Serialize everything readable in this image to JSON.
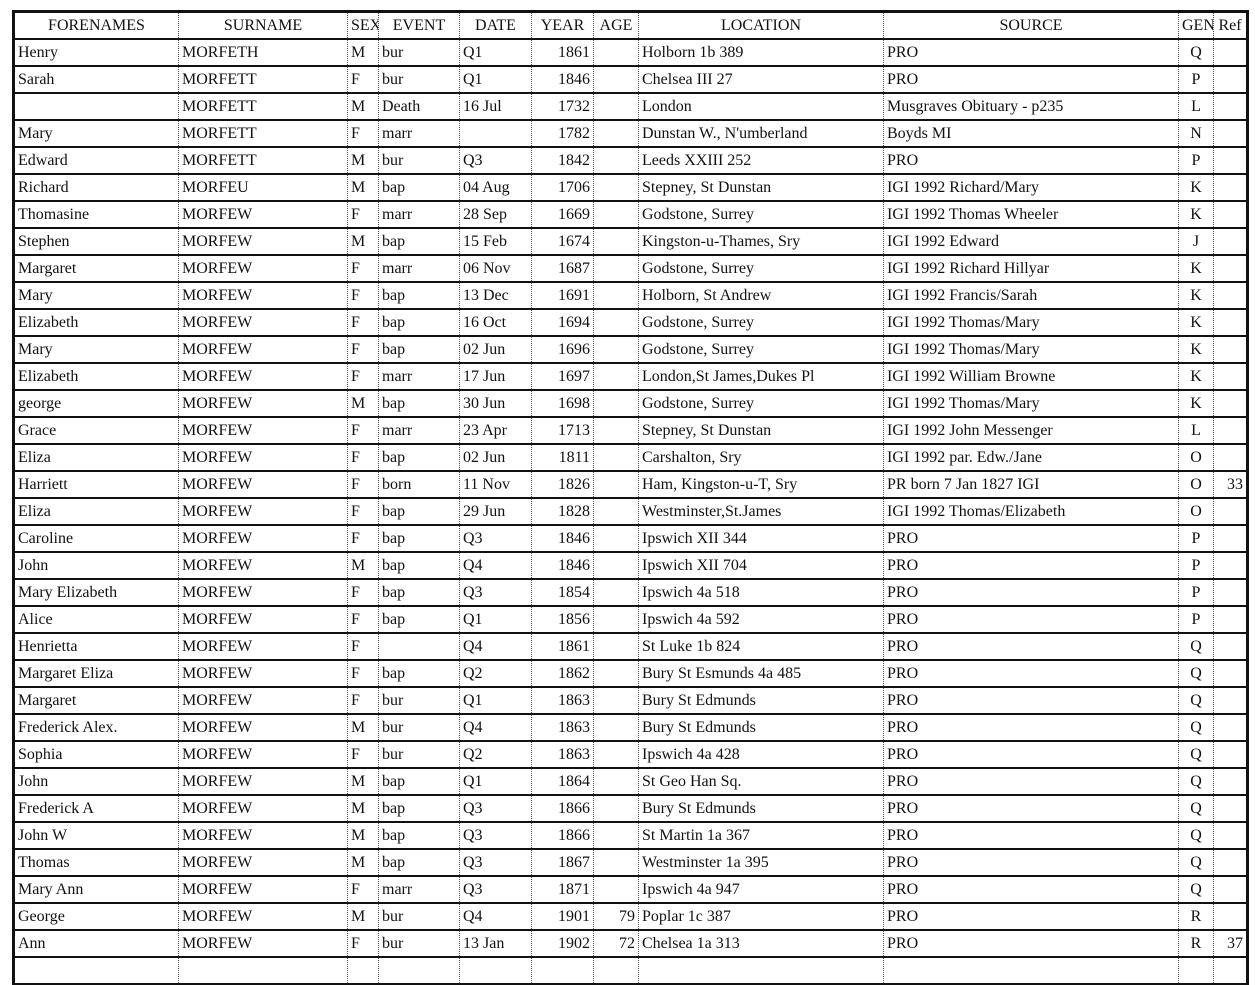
{
  "headers": [
    "FORENAMES",
    "SURNAME",
    "SEX",
    "EVENT",
    "DATE",
    "YEAR",
    "AGE",
    "LOCATION",
    "SOURCE",
    "GEN",
    "Ref"
  ],
  "rows": [
    [
      "Henry",
      "MORFETH",
      "M",
      "bur",
      "Q1",
      "1861",
      "",
      "Holborn 1b 389",
      "PRO",
      "Q",
      ""
    ],
    [
      "Sarah",
      "MORFETT",
      "F",
      "bur",
      "Q1",
      "1846",
      "",
      "Chelsea III 27",
      "PRO",
      "P",
      ""
    ],
    [
      "",
      "MORFETT",
      "M",
      "Death",
      "16 Jul",
      "1732",
      "",
      "London",
      "Musgraves Obituary - p235",
      "L",
      ""
    ],
    [
      "Mary",
      "MORFETT",
      "F",
      "marr",
      "",
      "1782",
      "",
      "Dunstan W., N'umberland",
      "Boyds MI",
      "N",
      ""
    ],
    [
      "Edward",
      "MORFETT",
      "M",
      "bur",
      "Q3",
      "1842",
      "",
      "Leeds XXIII 252",
      "PRO",
      "P",
      ""
    ],
    [
      "Richard",
      "MORFEU",
      "M",
      "bap",
      "04 Aug",
      "1706",
      "",
      "Stepney, St Dunstan",
      "IGI 1992 Richard/Mary",
      "K",
      ""
    ],
    [
      "Thomasine",
      "MORFEW",
      "F",
      "marr",
      "28 Sep",
      "1669",
      "",
      "Godstone, Surrey",
      "IGI 1992 Thomas Wheeler",
      "K",
      ""
    ],
    [
      "Stephen",
      "MORFEW",
      "M",
      "bap",
      "15 Feb",
      "1674",
      "",
      "Kingston-u-Thames, Sry",
      "IGI 1992 Edward",
      "J",
      ""
    ],
    [
      "Margaret",
      "MORFEW",
      "F",
      "marr",
      "06 Nov",
      "1687",
      "",
      "Godstone, Surrey",
      "IGI 1992 Richard Hillyar",
      "K",
      ""
    ],
    [
      "Mary",
      "MORFEW",
      "F",
      "bap",
      "13 Dec",
      "1691",
      "",
      "Holborn, St Andrew",
      "IGI 1992  Francis/Sarah",
      "K",
      ""
    ],
    [
      "Elizabeth",
      "MORFEW",
      "F",
      "bap",
      "16 Oct",
      "1694",
      "",
      "Godstone, Surrey",
      "IGI 1992  Thomas/Mary",
      "K",
      ""
    ],
    [
      "Mary",
      "MORFEW",
      "F",
      "bap",
      "02 Jun",
      "1696",
      "",
      "Godstone, Surrey",
      "IGI 1992  Thomas/Mary",
      "K",
      ""
    ],
    [
      "Elizabeth",
      "MORFEW",
      "F",
      "marr",
      "17 Jun",
      "1697",
      "",
      "London,St James,Dukes Pl",
      "IGI 1992 William Browne",
      "K",
      ""
    ],
    [
      "george",
      "MORFEW",
      "M",
      "bap",
      "30 Jun",
      "1698",
      "",
      "Godstone, Surrey",
      "IGI 1992  Thomas/Mary",
      "K",
      ""
    ],
    [
      "Grace",
      "MORFEW",
      "F",
      "marr",
      "23 Apr",
      "1713",
      "",
      "Stepney, St Dunstan",
      "IGI 1992   John Messenger",
      "L",
      ""
    ],
    [
      "Eliza",
      "MORFEW",
      "F",
      "bap",
      "02 Jun",
      "1811",
      "",
      "Carshalton, Sry",
      "IGI 1992 par. Edw./Jane",
      "O",
      ""
    ],
    [
      "Harriett",
      "MORFEW",
      "F",
      "born",
      "11 Nov",
      "1826",
      "",
      "Ham, Kingston-u-T, Sry",
      "PR born 7 Jan 1827  IGI",
      "O",
      "33"
    ],
    [
      "Eliza",
      "MORFEW",
      "F",
      "bap",
      "29 Jun",
      "1828",
      "",
      "Westminster,St.James",
      "IGI 1992  Thomas/Elizabeth",
      "O",
      ""
    ],
    [
      "Caroline",
      "MORFEW",
      "F",
      "bap",
      "Q3",
      "1846",
      "",
      "Ipswich XII 344",
      "PRO",
      "P",
      ""
    ],
    [
      "John",
      "MORFEW",
      "M",
      "bap",
      "Q4",
      "1846",
      "",
      "Ipswich XII 704",
      "PRO",
      "P",
      ""
    ],
    [
      "Mary Elizabeth",
      "MORFEW",
      "F",
      "bap",
      "Q3",
      "1854",
      "",
      "Ipswich 4a 518",
      "PRO",
      "P",
      ""
    ],
    [
      "Alice",
      "MORFEW",
      "F",
      "bap",
      "Q1",
      "1856",
      "",
      "Ipswich 4a 592",
      "PRO",
      "P",
      ""
    ],
    [
      "Henrietta",
      "MORFEW",
      "F",
      "",
      "Q4",
      "1861",
      "",
      "St Luke 1b 824",
      "PRO",
      "Q",
      ""
    ],
    [
      "Margaret Eliza",
      "MORFEW",
      "F",
      "bap",
      "Q2",
      "1862",
      "",
      "Bury St Esmunds 4a 485",
      "PRO",
      "Q",
      ""
    ],
    [
      "Margaret",
      "MORFEW",
      "F",
      "bur",
      "Q1",
      "1863",
      "",
      "Bury St Edmunds",
      "PRO",
      "Q",
      ""
    ],
    [
      "Frederick Alex.",
      "MORFEW",
      "M",
      "bur",
      "Q4",
      "1863",
      "",
      "Bury St Edmunds",
      "PRO",
      "Q",
      ""
    ],
    [
      "Sophia",
      "MORFEW",
      "F",
      "bur",
      "Q2",
      "1863",
      "",
      "Ipswich 4a 428",
      "PRO",
      "Q",
      ""
    ],
    [
      "John",
      "MORFEW",
      "M",
      "bap",
      "Q1",
      "1864",
      "",
      "St Geo Han Sq.",
      "PRO",
      "Q",
      ""
    ],
    [
      "Frederick A",
      "MORFEW",
      "M",
      "bap",
      "Q3",
      "1866",
      "",
      "Bury St Edmunds",
      "PRO",
      "Q",
      ""
    ],
    [
      "John W",
      "MORFEW",
      "M",
      "bap",
      "Q3",
      "1866",
      "",
      "St Martin 1a 367",
      "PRO",
      "Q",
      ""
    ],
    [
      "Thomas",
      "MORFEW",
      "M",
      "bap",
      "Q3",
      "1867",
      "",
      "Westminster 1a 395",
      "PRO",
      "Q",
      ""
    ],
    [
      "Mary Ann",
      "MORFEW",
      "F",
      "marr",
      "Q3",
      "1871",
      "",
      "Ipswich 4a 947",
      "PRO",
      "Q",
      ""
    ],
    [
      "George",
      "MORFEW",
      "M",
      "bur",
      "Q4",
      "1901",
      "79",
      "Poplar 1c 387",
      "PRO",
      "R",
      ""
    ],
    [
      "Ann",
      "MORFEW",
      "F",
      "bur",
      "13 Jan",
      "1902",
      "72",
      "Chelsea 1a 313",
      "PRO",
      "R",
      "37"
    ]
  ]
}
